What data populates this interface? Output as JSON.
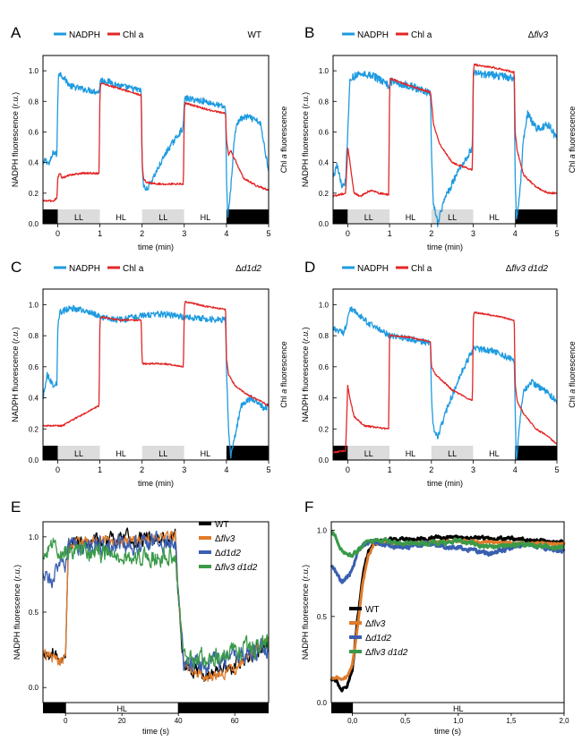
{
  "chart_data": [
    {
      "panel": "A",
      "type": "line",
      "strain_label": "WT",
      "legend": [
        "NADPH",
        "Chl a"
      ],
      "xlabel": "time (min)",
      "ylabel": "NADPH fluorescence (r.u.)",
      "ylabel_right": "Chl a fluorescence",
      "xlim": [
        -0.35,
        5.0
      ],
      "ylim": [
        0.0,
        1.1
      ],
      "xticks": [
        0,
        1,
        2,
        3,
        4,
        5
      ],
      "yticks": [
        0.0,
        0.2,
        0.4,
        0.6,
        0.8,
        1.0
      ],
      "bar_labels": [
        "LL",
        "HL",
        "LL",
        "HL"
      ],
      "series": [
        {
          "name": "NADPH",
          "color": "#1e9be0",
          "noise": 0.02,
          "x": [
            -0.35,
            -0.3,
            -0.2,
            -0.1,
            -0.02,
            0,
            0.02,
            0.1,
            0.3,
            0.6,
            0.8,
            0.98,
            1,
            1.02,
            1.2,
            1.5,
            1.98,
            2,
            2.03,
            2.1,
            2.3,
            2.6,
            2.98,
            3,
            3.02,
            3.5,
            3.98,
            4,
            4.03,
            4.1,
            4.2,
            4.3,
            4.5,
            4.8,
            5.0
          ],
          "y": [
            0.38,
            0.42,
            0.39,
            0.47,
            0.45,
            0.8,
            0.99,
            0.97,
            0.9,
            0.88,
            0.87,
            0.86,
            0.92,
            0.94,
            0.93,
            0.9,
            0.87,
            0.4,
            0.25,
            0.22,
            0.32,
            0.48,
            0.63,
            0.8,
            0.82,
            0.8,
            0.76,
            0.3,
            0.05,
            0.22,
            0.6,
            0.68,
            0.7,
            0.66,
            0.35
          ]
        },
        {
          "name": "Chl a",
          "color": "#e32626",
          "noise": 0.006,
          "x": [
            -0.35,
            -0.1,
            -0.02,
            0,
            0.05,
            0.1,
            0.3,
            0.6,
            0.98,
            1,
            1.02,
            1.5,
            1.98,
            2,
            2.03,
            2.1,
            2.4,
            2.98,
            3,
            3.02,
            3.5,
            3.98,
            4,
            4.05,
            4.1,
            4.2,
            4.4,
            4.7,
            5.0
          ],
          "y": [
            0.15,
            0.15,
            0.17,
            0.3,
            0.33,
            0.3,
            0.32,
            0.33,
            0.33,
            0.85,
            0.92,
            0.88,
            0.84,
            0.4,
            0.3,
            0.27,
            0.26,
            0.26,
            0.75,
            0.79,
            0.75,
            0.72,
            0.55,
            0.45,
            0.48,
            0.42,
            0.3,
            0.25,
            0.22
          ]
        }
      ]
    },
    {
      "panel": "B",
      "type": "line",
      "strain_label": "Δflv3",
      "legend": [
        "NADPH",
        "Chl a"
      ],
      "xlabel": "time (min)",
      "ylabel": "NADPH fluorescence (r.u.)",
      "ylabel_right": "Chl a fluorescence",
      "xlim": [
        -0.35,
        5.0
      ],
      "ylim": [
        0.0,
        1.1
      ],
      "xticks": [
        0,
        1,
        2,
        3,
        4,
        5
      ],
      "yticks": [
        0.0,
        0.2,
        0.4,
        0.6,
        0.8,
        1.0
      ],
      "bar_labels": [
        "LL",
        "HL",
        "LL",
        "HL"
      ],
      "series": [
        {
          "name": "NADPH",
          "color": "#1e9be0",
          "noise": 0.025,
          "x": [
            -0.35,
            -0.25,
            -0.15,
            -0.05,
            0,
            0.05,
            0.3,
            0.6,
            0.98,
            1,
            1.02,
            1.5,
            1.98,
            2,
            2.05,
            2.15,
            2.3,
            2.6,
            2.98,
            3,
            3.02,
            3.5,
            3.98,
            4,
            4.03,
            4.1,
            4.2,
            4.3,
            4.5,
            4.8,
            5.0
          ],
          "y": [
            0.3,
            0.38,
            0.25,
            0.28,
            0.6,
            0.95,
            0.98,
            0.97,
            0.9,
            0.88,
            0.93,
            0.9,
            0.85,
            0.45,
            0.12,
            0.0,
            0.15,
            0.32,
            0.5,
            0.95,
            0.98,
            0.97,
            0.95,
            0.3,
            0.04,
            0.15,
            0.55,
            0.72,
            0.62,
            0.65,
            0.55
          ]
        },
        {
          "name": "Chl a",
          "color": "#e32626",
          "noise": 0.006,
          "x": [
            -0.35,
            -0.05,
            0,
            0.03,
            0.15,
            0.3,
            0.55,
            0.75,
            0.98,
            1,
            1.02,
            1.5,
            1.98,
            2,
            2.05,
            2.2,
            2.5,
            2.98,
            3,
            3.02,
            3.5,
            3.98,
            4,
            4.05,
            4.2,
            4.5,
            4.8,
            5.0
          ],
          "y": [
            0.18,
            0.2,
            0.5,
            0.45,
            0.2,
            0.18,
            0.22,
            0.2,
            0.19,
            0.88,
            0.95,
            0.9,
            0.86,
            0.8,
            0.65,
            0.52,
            0.4,
            0.35,
            0.98,
            1.04,
            1.02,
            0.99,
            0.6,
            0.48,
            0.32,
            0.24,
            0.2,
            0.2
          ]
        }
      ]
    },
    {
      "panel": "C",
      "type": "line",
      "strain_label": "Δd1d2",
      "legend": [
        "NADPH",
        "Chl a"
      ],
      "xlabel": "time (min)",
      "ylabel": "NADPH fluorescence (r.u.)",
      "ylabel_right": "Chl a fluorescence",
      "xlim": [
        -0.35,
        5.0
      ],
      "ylim": [
        0.0,
        1.1
      ],
      "xticks": [
        0,
        1,
        2,
        3,
        4,
        5
      ],
      "yticks": [
        0.0,
        0.2,
        0.4,
        0.6,
        0.8,
        1.0
      ],
      "bar_labels": [
        "LL",
        "HL",
        "LL",
        "HL"
      ],
      "series": [
        {
          "name": "NADPH",
          "color": "#1e9be0",
          "noise": 0.02,
          "x": [
            -0.35,
            -0.25,
            -0.1,
            -0.02,
            0,
            0.05,
            0.3,
            0.8,
            1,
            1.5,
            2,
            2.5,
            3,
            3.5,
            3.98,
            4,
            4.05,
            4.1,
            4.2,
            4.35,
            4.6,
            4.9,
            5.0
          ],
          "y": [
            0.4,
            0.55,
            0.48,
            0.5,
            0.85,
            0.95,
            0.98,
            0.95,
            0.92,
            0.9,
            0.93,
            0.94,
            0.92,
            0.91,
            0.9,
            0.6,
            0.2,
            0.02,
            0.15,
            0.35,
            0.4,
            0.33,
            0.35
          ]
        },
        {
          "name": "Chl a",
          "color": "#e32626",
          "noise": 0.005,
          "x": [
            -0.35,
            -0.05,
            0.1,
            0.5,
            0.98,
            1,
            1.02,
            1.5,
            1.98,
            2,
            2.02,
            2.5,
            2.98,
            3,
            3.02,
            3.5,
            3.98,
            4,
            4.05,
            4.2,
            4.5,
            4.8,
            5.0
          ],
          "y": [
            0.22,
            0.22,
            0.22,
            0.28,
            0.35,
            0.9,
            0.92,
            0.9,
            0.9,
            0.63,
            0.62,
            0.62,
            0.6,
            0.96,
            1.02,
            0.99,
            0.97,
            0.65,
            0.55,
            0.48,
            0.42,
            0.38,
            0.35
          ]
        }
      ]
    },
    {
      "panel": "D",
      "type": "line",
      "strain_label": "Δflv3 d1d2",
      "legend": [
        "NADPH",
        "Chl a"
      ],
      "xlabel": "time (min)",
      "ylabel": "NADPH fluorescence (r.u.)",
      "ylabel_right": "Chl a fluorescence",
      "xlim": [
        -0.35,
        5.0
      ],
      "ylim": [
        0.0,
        1.1
      ],
      "xticks": [
        0,
        1,
        2,
        3,
        4,
        5
      ],
      "yticks": [
        0.0,
        0.2,
        0.4,
        0.6,
        0.8,
        1.0
      ],
      "bar_labels": [
        "LL",
        "HL",
        "LL",
        "HL"
      ],
      "series": [
        {
          "name": "NADPH",
          "color": "#1e9be0",
          "noise": 0.02,
          "x": [
            -0.35,
            -0.1,
            0,
            0.05,
            0.5,
            1,
            1.5,
            1.98,
            2,
            2.05,
            2.15,
            2.4,
            2.7,
            3,
            3.5,
            3.98,
            4,
            4.03,
            4.1,
            4.2,
            4.4,
            4.7,
            5.0
          ],
          "y": [
            0.85,
            0.82,
            0.9,
            0.98,
            0.88,
            0.8,
            0.78,
            0.75,
            0.4,
            0.2,
            0.15,
            0.35,
            0.55,
            0.72,
            0.7,
            0.64,
            0.35,
            0.0,
            0.2,
            0.45,
            0.5,
            0.45,
            0.38
          ]
        },
        {
          "name": "Chl a",
          "color": "#e32626",
          "noise": 0.005,
          "x": [
            -0.35,
            -0.05,
            0,
            0.05,
            0.15,
            0.4,
            0.98,
            1,
            1.02,
            1.5,
            1.98,
            2,
            2.1,
            2.5,
            2.98,
            3,
            3.02,
            3.5,
            3.98,
            4,
            4.05,
            4.2,
            4.5,
            4.8,
            5.0
          ],
          "y": [
            0.05,
            0.06,
            0.48,
            0.4,
            0.28,
            0.22,
            0.2,
            0.82,
            0.8,
            0.79,
            0.76,
            0.6,
            0.55,
            0.45,
            0.38,
            0.9,
            0.95,
            0.93,
            0.9,
            0.5,
            0.38,
            0.3,
            0.2,
            0.15,
            0.1
          ]
        }
      ]
    },
    {
      "panel": "E",
      "type": "line",
      "xlabel": "time (s)",
      "ylabel": "NADPH fluorescence (r.u.)",
      "xlim": [
        -8,
        72
      ],
      "ylim": [
        -0.1,
        1.1
      ],
      "xticks": [
        0,
        20,
        40,
        60
      ],
      "yticks": [
        0.0,
        0.5,
        1.0
      ],
      "bar_labels": [
        "HL"
      ],
      "legend": [
        "WT",
        "Δflv3",
        "Δd1d2",
        "Δflv3 d1d2"
      ],
      "series": [
        {
          "name": "WT",
          "color": "#000000",
          "noise": 0.04,
          "x": [
            -8,
            -2,
            0,
            1,
            5,
            20,
            30,
            39,
            40,
            42,
            50,
            60,
            72
          ],
          "y": [
            0.22,
            0.2,
            0.25,
            0.95,
            0.97,
            0.98,
            0.98,
            1.0,
            0.6,
            0.12,
            0.08,
            0.15,
            0.3
          ]
        },
        {
          "name": "Δflv3",
          "color": "#e07b2a",
          "noise": 0.03,
          "x": [
            -8,
            -2,
            0,
            1,
            5,
            20,
            30,
            39,
            40,
            42,
            50,
            60,
            72
          ],
          "y": [
            0.22,
            0.18,
            0.2,
            0.95,
            0.96,
            0.98,
            0.99,
            1.0,
            0.6,
            0.15,
            0.05,
            0.12,
            0.32
          ]
        },
        {
          "name": "Δd1d2",
          "color": "#3a5fb0",
          "noise": 0.05,
          "x": [
            -8,
            -5,
            -2,
            0,
            1,
            5,
            20,
            30,
            39,
            40,
            42,
            50,
            60,
            72
          ],
          "y": [
            0.78,
            0.68,
            0.85,
            0.8,
            0.95,
            0.93,
            0.95,
            0.96,
            0.96,
            0.6,
            0.15,
            0.15,
            0.2,
            0.25
          ]
        },
        {
          "name": "Δflv3 d1d2",
          "color": "#3a9a48",
          "noise": 0.05,
          "x": [
            -8,
            -4,
            0,
            1,
            5,
            20,
            30,
            39,
            40,
            42,
            50,
            60,
            72
          ],
          "y": [
            0.88,
            0.95,
            0.9,
            0.92,
            0.9,
            0.88,
            0.87,
            0.88,
            0.6,
            0.18,
            0.2,
            0.25,
            0.28
          ]
        }
      ]
    },
    {
      "panel": "F",
      "type": "line",
      "xlabel": "time (s)",
      "ylabel": "NADPH fluorescence (r.u.)",
      "xlim": [
        -0.2,
        2.0
      ],
      "ylim": [
        0.0,
        1.05
      ],
      "xticks": [
        0.0,
        0.5,
        1.0,
        1.5,
        2.0
      ],
      "xtick_labels": [
        "0,0",
        "0,5",
        "1,0",
        "1,5",
        "2,0"
      ],
      "yticks": [
        0.0,
        0.5,
        1.0
      ],
      "ytick_labels": [
        "0.0",
        "0.5",
        "1.0"
      ],
      "bar_labels": [
        "HL"
      ],
      "legend": [
        "WT",
        "Δflv3",
        "Δd1d2",
        "Δflv3 d1d2"
      ],
      "series": [
        {
          "name": "WT",
          "color": "#000000",
          "noise": 0.008,
          "x": [
            -0.2,
            -0.15,
            -0.1,
            -0.05,
            0,
            0.05,
            0.1,
            0.15,
            0.2,
            0.3,
            0.5,
            1.0,
            1.5,
            2.0
          ],
          "y": [
            0.14,
            0.12,
            0.08,
            0.1,
            0.2,
            0.5,
            0.75,
            0.88,
            0.92,
            0.94,
            0.95,
            0.96,
            0.95,
            0.93
          ]
        },
        {
          "name": "Δflv3",
          "color": "#e07b2a",
          "noise": 0.006,
          "x": [
            -0.2,
            -0.15,
            -0.1,
            -0.05,
            0,
            0.05,
            0.1,
            0.15,
            0.2,
            0.3,
            0.5,
            1.0,
            1.5,
            2.0
          ],
          "y": [
            0.14,
            0.15,
            0.14,
            0.15,
            0.22,
            0.45,
            0.7,
            0.85,
            0.92,
            0.93,
            0.92,
            0.94,
            0.93,
            0.92
          ]
        },
        {
          "name": "Δd1d2",
          "color": "#3a5fb0",
          "noise": 0.01,
          "x": [
            -0.2,
            -0.15,
            -0.1,
            -0.05,
            0,
            0.05,
            0.1,
            0.2,
            0.4,
            0.7,
            1.0,
            1.3,
            1.6,
            2.0
          ],
          "y": [
            0.8,
            0.75,
            0.7,
            0.72,
            0.78,
            0.88,
            0.92,
            0.93,
            0.9,
            0.92,
            0.9,
            0.86,
            0.92,
            0.88
          ]
        },
        {
          "name": "Δflv3 d1d2",
          "color": "#3a9a48",
          "noise": 0.01,
          "x": [
            -0.2,
            -0.15,
            -0.1,
            -0.05,
            0,
            0.05,
            0.1,
            0.2,
            0.4,
            0.7,
            1.0,
            1.3,
            1.6,
            2.0
          ],
          "y": [
            1.0,
            0.95,
            0.88,
            0.85,
            0.86,
            0.88,
            0.92,
            0.94,
            0.93,
            0.92,
            0.94,
            0.9,
            0.92,
            0.9
          ]
        }
      ]
    }
  ]
}
